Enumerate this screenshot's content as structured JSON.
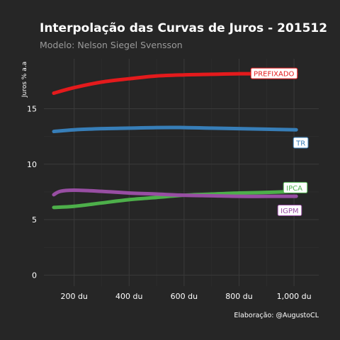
{
  "colors": {
    "background": "#262626",
    "panel": "#262626",
    "grid_major": "#3a3a3a",
    "grid_minor": "#303030",
    "label_box": "#ffffff"
  },
  "chart_data": {
    "type": "line",
    "title": "Interpolação das Curvas de Juros - 201512",
    "subtitle": "Modelo: Nelson Siegel Svensson",
    "xlabel": "",
    "ylabel": "Juros % a.a",
    "caption": "Elaboração: @AugustoCL",
    "xlim": [
      90,
      1090
    ],
    "ylim": [
      -1.0,
      19.5
    ],
    "x_ticks": [
      200,
      400,
      600,
      800,
      1000
    ],
    "x_tick_labels": [
      "200 du",
      "400 du",
      "600 du",
      "800 du",
      "1,000 du"
    ],
    "y_ticks": [
      0,
      5,
      10,
      15
    ],
    "y_tick_labels": [
      "0",
      "5",
      "10",
      "15"
    ],
    "grid": true,
    "legend": "none",
    "series": [
      {
        "name": "PREFIXADO",
        "color": "#e41a1c",
        "x": [
          126,
          200,
          300,
          400,
          500,
          600,
          700,
          800,
          900,
          1008
        ],
        "y": [
          16.4,
          16.9,
          17.4,
          17.7,
          17.95,
          18.05,
          18.1,
          18.15,
          18.15,
          18.15
        ]
      },
      {
        "name": "TR",
        "color": "#377eb8",
        "x": [
          126,
          200,
          300,
          400,
          500,
          600,
          700,
          800,
          900,
          1008
        ],
        "y": [
          12.95,
          13.1,
          13.2,
          13.25,
          13.3,
          13.3,
          13.25,
          13.2,
          13.15,
          13.1
        ]
      },
      {
        "name": "IPCA",
        "color": "#4daf4a",
        "x": [
          126,
          200,
          300,
          400,
          500,
          600,
          700,
          800,
          900,
          1008
        ],
        "y": [
          6.1,
          6.2,
          6.5,
          6.8,
          7.0,
          7.2,
          7.3,
          7.4,
          7.45,
          7.55
        ]
      },
      {
        "name": "IGPM",
        "color": "#984ea3",
        "x": [
          126,
          150,
          200,
          300,
          400,
          500,
          600,
          700,
          800,
          900,
          1008
        ],
        "y": [
          7.25,
          7.55,
          7.65,
          7.55,
          7.4,
          7.3,
          7.2,
          7.15,
          7.1,
          7.1,
          7.1
        ]
      }
    ]
  }
}
